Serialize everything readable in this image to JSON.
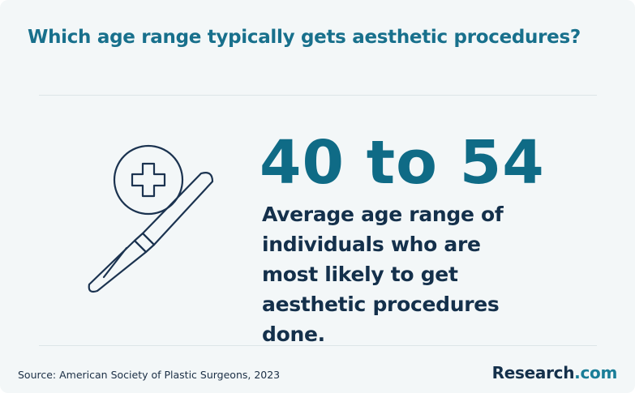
{
  "header": {
    "title": "Which age range typically gets aesthetic procedures?"
  },
  "stat": {
    "value": "40 to 54",
    "description": "Average age range of individuals who are most likely to get aesthetic procedures done."
  },
  "footer": {
    "source": "Source: American Society of Plastic Surgeons, 2023",
    "logo": {
      "name": "Research",
      "suffix": ".com"
    }
  }
}
